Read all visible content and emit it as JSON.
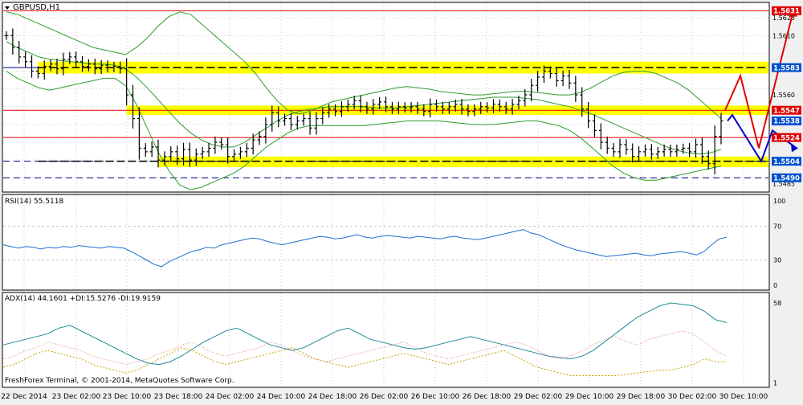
{
  "title": "GBPUSD,H1",
  "copyright": "FreshForex Terminal, © 2001-2014, MetaQuotes Software Corp.",
  "colors": {
    "bg": "#ffffff",
    "grid": "#c8c8c8",
    "frame": "#000000",
    "bb": "#2e9b2e",
    "candle": "#000000",
    "zone": "#ffff00",
    "redLine": "#e00000",
    "blueDash": "#00008b",
    "blackDash": "#000000",
    "forecastRed": "#e00000",
    "forecastBlue": "#0000cc",
    "rsi": "#1e6fd0",
    "adx": "#1c8a9a",
    "diPlus": "#c8a000",
    "diMinus": "#e08080",
    "tagRed": "#e00000",
    "tagBlue": "#0050d0",
    "tagBlack": "#000000"
  },
  "chart_data": [
    {
      "type": "candlestick",
      "title": "GBPUSD,H1",
      "y_ticks": [
        "1.5625",
        "1.5610",
        "1.5560",
        "1.5490",
        "1.5485"
      ],
      "ylim": [
        1.5478,
        1.5638
      ],
      "x_ticks": [
        "22 Dec 2014",
        "23 Dec 02:00",
        "23 Dec 10:00",
        "23 Dec 18:00",
        "24 Dec 02:00",
        "24 Dec 10:00",
        "24 Dec 18:00",
        "26 Dec 02:00",
        "26 Dec 10:00",
        "26 Dec 18:00",
        "29 Dec 02:00",
        "29 Dec 10:00",
        "29 Dec 18:00",
        "30 Dec 02:00",
        "30 Dec 10:00"
      ],
      "price_tags": [
        {
          "label": "1.5631",
          "value": 1.5631,
          "kind": "red"
        },
        {
          "label": "1.5583",
          "value": 1.5583,
          "kind": "blue"
        },
        {
          "label": "1.5547",
          "value": 1.5547,
          "kind": "red"
        },
        {
          "label": "1.5538",
          "value": 1.5538,
          "kind": "blue"
        },
        {
          "label": "1.5524",
          "value": 1.5524,
          "kind": "red"
        },
        {
          "label": "1.5504",
          "value": 1.5504,
          "kind": "blue"
        },
        {
          "label": "1.5490",
          "value": 1.549,
          "kind": "blue"
        }
      ],
      "red_lines": [
        1.5631,
        1.5547,
        1.5524
      ],
      "blue_dash_lines": [
        1.5504,
        1.549
      ],
      "black_dash_lines": [
        1.5583,
        1.5504
      ],
      "zones": [
        {
          "from": 1.5578,
          "to": 1.5588,
          "start_bar": 5
        },
        {
          "from": 1.5543,
          "to": 1.5551,
          "start_bar": 19
        },
        {
          "from": 1.5499,
          "to": 1.5508,
          "start_bar": 24
        }
      ],
      "closes": [
        1.561,
        1.56,
        1.5592,
        1.5588,
        1.558,
        1.5578,
        1.5584,
        1.5586,
        1.5582,
        1.559,
        1.5592,
        1.5588,
        1.5584,
        1.5586,
        1.5582,
        1.5585,
        1.5583,
        1.5584,
        1.5582,
        1.556,
        1.554,
        1.5515,
        1.5512,
        1.5516,
        1.5505,
        1.5508,
        1.5512,
        1.5506,
        1.5514,
        1.5505,
        1.551,
        1.5512,
        1.5515,
        1.552,
        1.5518,
        1.5508,
        1.551,
        1.5512,
        1.5515,
        1.5522,
        1.5525,
        1.5535,
        1.5545,
        1.5538,
        1.554,
        1.5535,
        1.5538,
        1.554,
        1.5532,
        1.554,
        1.5545,
        1.5548,
        1.5546,
        1.555,
        1.5552,
        1.5555,
        1.555,
        1.5548,
        1.5552,
        1.5554,
        1.555,
        1.5548,
        1.555,
        1.5549,
        1.555,
        1.5548,
        1.5546,
        1.5552,
        1.555,
        1.5548,
        1.555,
        1.5552,
        1.5548,
        1.5546,
        1.5548,
        1.555,
        1.5549,
        1.5552,
        1.555,
        1.5548,
        1.5552,
        1.5555,
        1.556,
        1.5568,
        1.5575,
        1.558,
        1.5578,
        1.5572,
        1.5576,
        1.557,
        1.556,
        1.5548,
        1.5538,
        1.553,
        1.552,
        1.5515,
        1.5512,
        1.5518,
        1.5514,
        1.5508,
        1.5512,
        1.5514,
        1.551,
        1.5512,
        1.5514,
        1.5512,
        1.5514,
        1.5515,
        1.5512,
        1.5518,
        1.5508,
        1.5502,
        1.5525,
        1.5538
      ],
      "bb_upper": [
        1.563,
        1.5628,
        1.5624,
        1.562,
        1.5616,
        1.5612,
        1.5608,
        1.5604,
        1.56,
        1.5598,
        1.5596,
        1.5594,
        1.56,
        1.5608,
        1.5618,
        1.5626,
        1.563,
        1.5628,
        1.562,
        1.5612,
        1.5604,
        1.5596,
        1.5588,
        1.5578,
        1.5566,
        1.5555,
        1.5547,
        1.5544,
        1.5546,
        1.555,
        1.5554,
        1.5556,
        1.5558,
        1.556,
        1.5562,
        1.5564,
        1.5566,
        1.5567,
        1.5566,
        1.5565,
        1.5563,
        1.5562,
        1.5561,
        1.556,
        1.556,
        1.5561,
        1.5562,
        1.5563,
        1.5563,
        1.5562,
        1.5561,
        1.556,
        1.556,
        1.5562,
        1.5566,
        1.5571,
        1.5576,
        1.5579,
        1.558,
        1.558,
        1.5578,
        1.5574,
        1.557,
        1.5564,
        1.5556,
        1.5548,
        1.554
      ],
      "bb_mid": [
        1.5605,
        1.56,
        1.5596,
        1.5592,
        1.559,
        1.5589,
        1.5588,
        1.5587,
        1.5586,
        1.5586,
        1.5585,
        1.5582,
        1.5575,
        1.5566,
        1.5556,
        1.5546,
        1.5536,
        1.5528,
        1.5522,
        1.5518,
        1.5516,
        1.5516,
        1.552,
        1.5526,
        1.5532,
        1.5538,
        1.5543,
        1.5546,
        1.5548,
        1.5549,
        1.555,
        1.555,
        1.555,
        1.555,
        1.5549,
        1.5549,
        1.5549,
        1.555,
        1.5551,
        1.5552,
        1.5553,
        1.5554,
        1.5555,
        1.5556,
        1.5557,
        1.5558,
        1.5558,
        1.5558,
        1.5557,
        1.5556,
        1.5554,
        1.5552,
        1.555,
        1.5547,
        1.5544,
        1.554,
        1.5536,
        1.5532,
        1.5528,
        1.5524,
        1.552,
        1.5516,
        1.5513,
        1.5511,
        1.551,
        1.5511,
        1.5514
      ],
      "bb_lower": [
        1.558,
        1.5574,
        1.557,
        1.5566,
        1.5564,
        1.5566,
        1.5568,
        1.557,
        1.5572,
        1.5574,
        1.5574,
        1.5568,
        1.5552,
        1.5532,
        1.5512,
        1.5496,
        1.5484,
        1.548,
        1.5482,
        1.5486,
        1.549,
        1.5494,
        1.55,
        1.5508,
        1.5516,
        1.5522,
        1.5528,
        1.5532,
        1.5534,
        1.5534,
        1.5534,
        1.5534,
        1.5534,
        1.5534,
        1.5535,
        1.5536,
        1.5537,
        1.5538,
        1.5538,
        1.5538,
        1.5538,
        1.5537,
        1.5536,
        1.5535,
        1.5535,
        1.5535,
        1.5536,
        1.5537,
        1.5538,
        1.5538,
        1.5536,
        1.5534,
        1.553,
        1.5524,
        1.5516,
        1.5508,
        1.55,
        1.5494,
        1.549,
        1.5488,
        1.5488,
        1.549,
        1.5492,
        1.5494,
        1.5496,
        1.5498,
        1.55
      ],
      "forecast_red": [
        [
          0,
          1.5547
        ],
        [
          1,
          1.5576
        ],
        [
          2,
          1.5515
        ],
        [
          3,
          1.5631
        ]
      ],
      "forecast_blue": [
        [
          0,
          1.5538
        ],
        [
          1,
          1.5543
        ],
        [
          2,
          1.5504
        ],
        [
          3,
          1.553
        ],
        [
          4,
          1.5515
        ]
      ]
    },
    {
      "type": "line",
      "title": "RSI(14) 55.5118",
      "y_ticks": [
        "100",
        "70",
        "30",
        "0"
      ],
      "ylim": [
        0,
        100
      ],
      "levels": [
        70,
        30
      ],
      "values": [
        48,
        46,
        44,
        46,
        45,
        43,
        45,
        44,
        46,
        45,
        47,
        46,
        45,
        44,
        46,
        45,
        44,
        40,
        35,
        30,
        25,
        22,
        28,
        32,
        36,
        40,
        42,
        45,
        44,
        48,
        50,
        52,
        54,
        56,
        55,
        52,
        50,
        48,
        50,
        52,
        54,
        56,
        58,
        57,
        55,
        56,
        58,
        60,
        57,
        56,
        58,
        59,
        58,
        57,
        56,
        58,
        57,
        56,
        55,
        57,
        58,
        56,
        55,
        54,
        56,
        58,
        60,
        62,
        64,
        66,
        62,
        60,
        56,
        52,
        48,
        45,
        42,
        40,
        38,
        36,
        34,
        35,
        36,
        37,
        38,
        36,
        35,
        37,
        38,
        39,
        40,
        38,
        36,
        40,
        48,
        55,
        57
      ]
    },
    {
      "type": "line",
      "title": "ADX(14) 44.1601 +DI:15.5276 -DI:19.9159",
      "y_ticks": [
        "58",
        "1"
      ],
      "ylim": [
        0,
        62
      ],
      "series": [
        {
          "name": "ADX(14) 44.1601",
          "values": [
            28,
            30,
            32,
            34,
            36,
            40,
            42,
            38,
            34,
            30,
            26,
            22,
            18,
            15,
            14,
            16,
            20,
            25,
            30,
            34,
            38,
            40,
            36,
            32,
            28,
            26,
            24,
            26,
            30,
            34,
            38,
            40,
            36,
            32,
            30,
            28,
            26,
            25,
            26,
            28,
            30,
            32,
            34,
            32,
            30,
            28,
            26,
            24,
            22,
            20,
            19,
            18,
            20,
            24,
            30,
            36,
            42,
            48,
            52,
            56,
            58,
            57,
            56,
            52,
            46,
            44
          ]
        },
        {
          "name": "+DI:15.5276",
          "values": [
            12,
            14,
            18,
            22,
            24,
            22,
            20,
            18,
            14,
            12,
            10,
            8,
            10,
            14,
            18,
            22,
            26,
            24,
            20,
            16,
            14,
            16,
            18,
            20,
            22,
            24,
            26,
            22,
            18,
            16,
            14,
            12,
            14,
            16,
            18,
            20,
            22,
            20,
            18,
            16,
            14,
            16,
            18,
            20,
            22,
            24,
            20,
            16,
            12,
            10,
            8,
            6,
            6,
            6,
            6,
            6,
            7,
            8,
            9,
            10,
            10,
            12,
            14,
            18,
            16,
            16
          ]
        },
        {
          "name": "-DI:19.9159",
          "values": [
            18,
            20,
            24,
            26,
            30,
            28,
            26,
            24,
            20,
            18,
            16,
            14,
            16,
            18,
            22,
            24,
            28,
            30,
            26,
            22,
            20,
            22,
            24,
            26,
            30,
            28,
            24,
            20,
            18,
            16,
            18,
            20,
            22,
            24,
            26,
            28,
            30,
            26,
            22,
            20,
            18,
            20,
            22,
            24,
            26,
            28,
            30,
            28,
            24,
            20,
            18,
            20,
            24,
            28,
            32,
            34,
            30,
            28,
            32,
            34,
            36,
            38,
            36,
            30,
            24,
            20
          ]
        }
      ]
    }
  ]
}
